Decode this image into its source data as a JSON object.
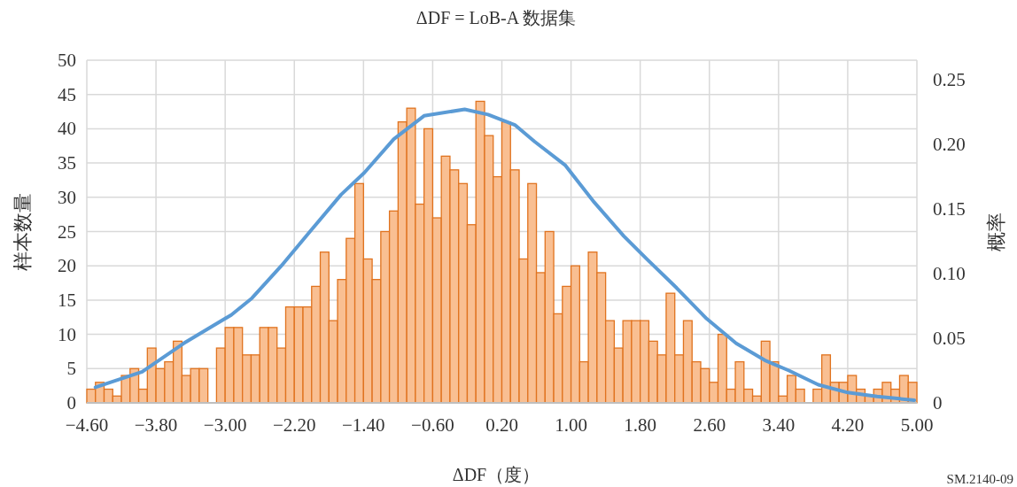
{
  "chart_data": {
    "type": "histogram",
    "title": "ΔDF = LoB-A 数据集",
    "xlabel": "ΔDF（度）",
    "ylabel": "样本数量",
    "y2label": "概率",
    "annotations": [
      "SM.2140-09"
    ],
    "bins": [
      -4.6,
      -4.5,
      -4.4,
      -4.3,
      -4.2,
      -4.1,
      -4.0,
      -3.9,
      -3.8,
      -3.7,
      -3.6,
      -3.5,
      -3.4,
      -3.3,
      -3.2,
      -3.1,
      -3.0,
      -2.9,
      -2.8,
      -2.7,
      -2.6,
      -2.5,
      -2.4,
      -2.3,
      -2.2,
      -2.1,
      -2.0,
      -1.9,
      -1.8,
      -1.7,
      -1.6,
      -1.5,
      -1.4,
      -1.3,
      -1.2,
      -1.1,
      -1.0,
      -0.9,
      -0.8,
      -0.7,
      -0.6,
      -0.5,
      -0.4,
      -0.3,
      -0.2,
      -0.1,
      0.0,
      0.1,
      0.2,
      0.3,
      0.4,
      0.5,
      0.6,
      0.7,
      0.8,
      0.9,
      1.0,
      1.1,
      1.2,
      1.3,
      1.4,
      1.5,
      1.6,
      1.7,
      1.8,
      1.9,
      2.0,
      2.1,
      2.2,
      2.3,
      2.4,
      2.5,
      2.6,
      2.7,
      2.8,
      2.9,
      3.0,
      3.1,
      3.2,
      3.3,
      3.4,
      3.5,
      3.6,
      3.7,
      3.8,
      3.9,
      4.0,
      4.1,
      4.2,
      4.3,
      4.4,
      4.5,
      4.6,
      4.7,
      4.8,
      4.9,
      5.0
    ],
    "series": [
      {
        "type": "histogram",
        "color": "#f9bf92",
        "values": [
          2,
          3,
          2,
          1,
          4,
          5,
          2,
          8,
          5,
          6,
          9,
          4,
          5,
          5,
          0,
          8,
          11,
          11,
          7,
          7,
          11,
          11,
          8,
          14,
          14,
          14,
          17,
          22,
          12,
          18,
          24,
          32,
          21,
          18,
          25,
          28,
          41,
          43,
          29,
          40,
          27,
          36,
          34,
          32,
          26,
          44,
          39,
          33,
          41,
          34,
          21,
          32,
          19,
          25,
          13,
          17,
          20,
          6,
          22,
          19,
          12,
          8,
          12,
          12,
          12,
          9,
          7,
          16,
          7,
          12,
          6,
          5,
          3,
          10,
          2,
          6,
          2,
          1,
          9,
          6,
          1,
          4,
          2,
          0,
          2,
          7,
          3,
          3,
          4,
          2,
          1,
          2,
          3,
          2,
          4,
          3
        ]
      },
      {
        "type": "line",
        "axis": "y2",
        "color": "#5b9bd5",
        "x": [
          -4.5,
          -3.96,
          -3.48,
          -2.93,
          -2.69,
          -2.35,
          -2.0,
          -1.66,
          -1.39,
          -1.05,
          -0.7,
          -0.23,
          0.04,
          0.35,
          0.58,
          0.93,
          1.27,
          1.61,
          1.88,
          2.22,
          2.57,
          2.91,
          3.24,
          3.52,
          3.86,
          4.2,
          4.54,
          4.97
        ],
        "values": [
          0.012,
          0.024,
          0.046,
          0.068,
          0.081,
          0.106,
          0.134,
          0.161,
          0.178,
          0.204,
          0.222,
          0.227,
          0.223,
          0.215,
          0.202,
          0.184,
          0.155,
          0.129,
          0.111,
          0.089,
          0.065,
          0.046,
          0.033,
          0.025,
          0.014,
          0.008,
          0.005,
          0.002
        ]
      }
    ],
    "xlim": [
      -4.6,
      5.0
    ],
    "xticks": [
      {
        "value": -4.6,
        "label": "−4.60"
      },
      {
        "value": -3.8,
        "label": "−3.80"
      },
      {
        "value": -3.0,
        "label": "−3.00"
      },
      {
        "value": -2.2,
        "label": "−2.20"
      },
      {
        "value": -1.4,
        "label": "−1.40"
      },
      {
        "value": -0.6,
        "label": "−0.60"
      },
      {
        "value": 0.2,
        "label": "0.20"
      },
      {
        "value": 1.0,
        "label": "1.00"
      },
      {
        "value": 1.8,
        "label": "1.80"
      },
      {
        "value": 2.6,
        "label": "2.60"
      },
      {
        "value": 3.4,
        "label": "3.40"
      },
      {
        "value": 4.2,
        "label": "4.20"
      },
      {
        "value": 5.0,
        "label": "5.00"
      }
    ],
    "ylim": [
      0,
      50
    ],
    "yticks": [
      0,
      5,
      10,
      15,
      20,
      25,
      30,
      35,
      40,
      45,
      50
    ],
    "y2lim": [
      0,
      0.265
    ],
    "y2ticks": [
      0,
      0.05,
      {
        "value": 0.1,
        "label": "0.10"
      },
      0.15,
      {
        "value": 0.2,
        "label": "0.20"
      },
      0.25
    ],
    "grid": true
  }
}
